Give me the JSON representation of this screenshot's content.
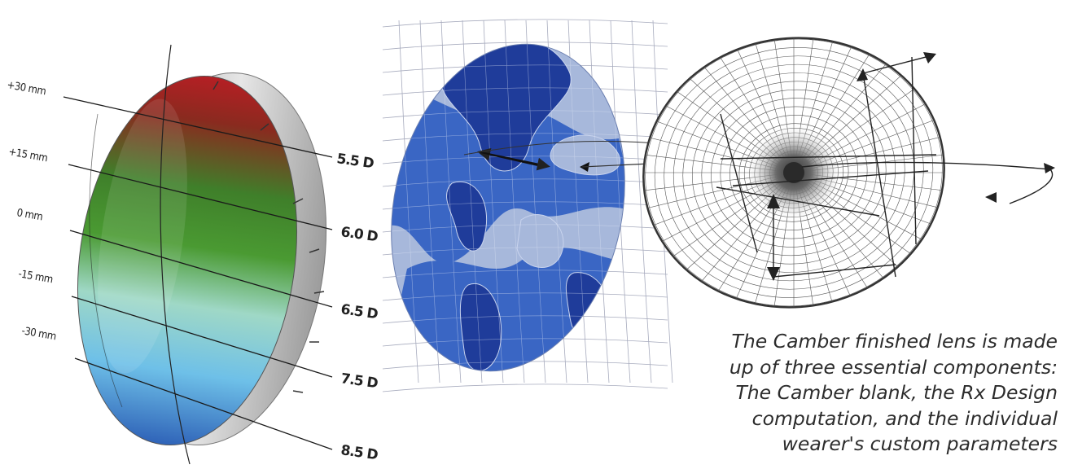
{
  "lens_labels": {
    "height_marks": [
      "+30 mm",
      "+15 mm",
      "0 mm",
      "-15 mm",
      "-30 mm"
    ],
    "power_marks": [
      "5.5 D",
      "6.0 D",
      "6.5 D",
      "7.5 D",
      "8.5 D"
    ]
  },
  "caption": {
    "lines": [
      "The Camber finished lens is made",
      "up of three essential components:",
      "The Camber blank, the Rx Design",
      "computation, and the individual",
      "wearer's custom parameters"
    ]
  },
  "colors": {
    "lens_top": "#b51f24",
    "lens_mid": "#4a9a32",
    "lens_low": "#7cc8e8",
    "lens_bottom": "#2f63b8",
    "map_dark": "#1f3c9a",
    "map_mid": "#3a66c4",
    "map_light": "#a7b8db",
    "text": "#2c2c2c"
  }
}
